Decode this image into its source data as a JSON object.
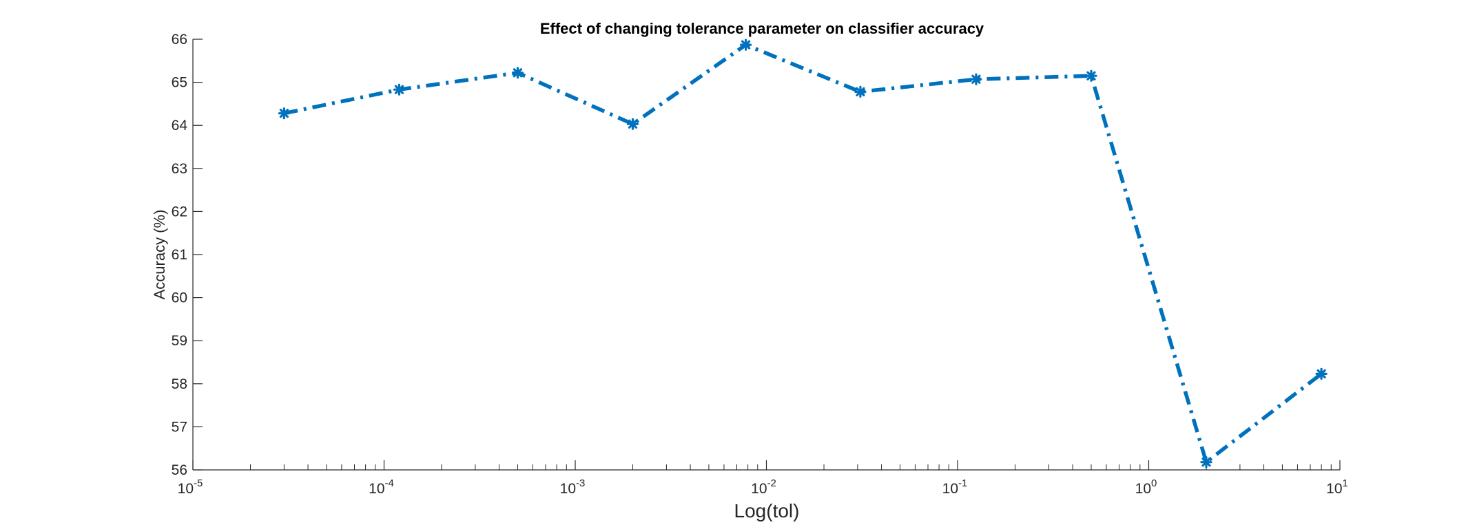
{
  "chart_data": {
    "type": "line",
    "title": "Effect of changing tolerance parameter on classifier accuracy",
    "xlabel": "Log(tol)",
    "ylabel": "Accuracy (%)",
    "xscale": "log",
    "xlim": [
      1e-05,
      10
    ],
    "ylim": [
      56,
      66
    ],
    "x_ticks": [
      {
        "base": "10",
        "exp": "-5",
        "value": 1e-05
      },
      {
        "base": "10",
        "exp": "-4",
        "value": 0.0001
      },
      {
        "base": "10",
        "exp": "-3",
        "value": 0.001
      },
      {
        "base": "10",
        "exp": "-2",
        "value": 0.01
      },
      {
        "base": "10",
        "exp": "-1",
        "value": 0.1
      },
      {
        "base": "10",
        "exp": "0",
        "value": 1
      },
      {
        "base": "10",
        "exp": "1",
        "value": 10
      }
    ],
    "y_ticks": [
      "56",
      "57",
      "58",
      "59",
      "60",
      "61",
      "62",
      "63",
      "64",
      "65",
      "66"
    ],
    "grid": false,
    "line_style": "dash-dot",
    "marker": "star",
    "color": "#0072BD",
    "series": [
      {
        "x": [
          3e-05,
          0.00012,
          0.0005,
          0.002,
          0.0078,
          0.031,
          0.125,
          0.5,
          2,
          8
        ],
        "y": [
          64.28,
          64.83,
          65.22,
          64.03,
          65.87,
          64.78,
          65.07,
          65.15,
          56.18,
          58.23
        ]
      }
    ]
  }
}
